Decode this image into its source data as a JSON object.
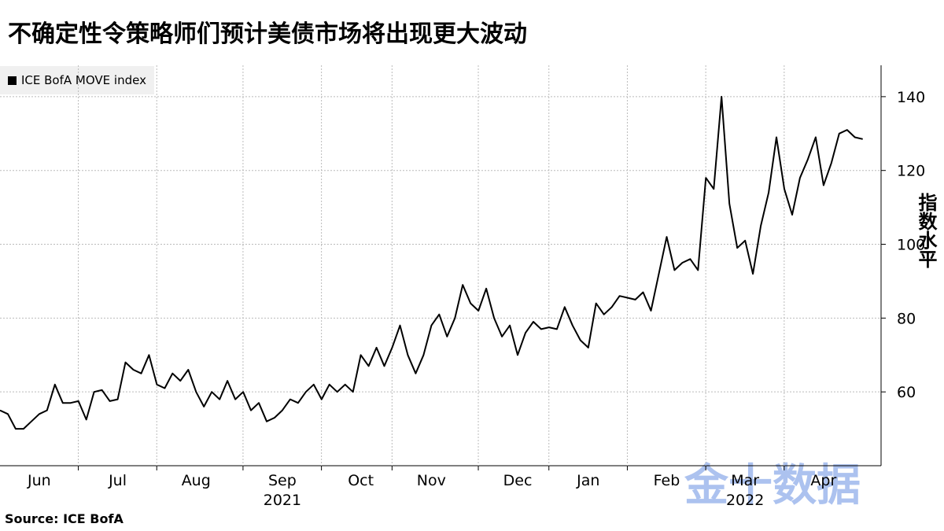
{
  "chart_data": {
    "type": "line",
    "title": "不确定性令策略师们预计美债市场将出现更大波动",
    "y_label": "指数水平",
    "source": "Source: ICE BofA",
    "watermark": "金十数据",
    "categories": [
      null,
      null,
      null,
      null,
      null,
      "Jun",
      null,
      null,
      null,
      null,
      null,
      null,
      null,
      null,
      null,
      "Jul",
      null,
      null,
      null,
      null,
      null,
      null,
      null,
      null,
      null,
      "Aug",
      null,
      null,
      null,
      null,
      null,
      null,
      null,
      null,
      null,
      null,
      "Sep",
      null,
      null,
      null,
      null,
      null,
      null,
      null,
      null,
      null,
      "Oct",
      null,
      null,
      null,
      null,
      null,
      null,
      null,
      null,
      "Nov",
      null,
      null,
      null,
      null,
      null,
      null,
      null,
      null,
      null,
      null,
      "Dec",
      null,
      null,
      null,
      null,
      null,
      null,
      null,
      null,
      "Jan",
      null,
      null,
      null,
      null,
      null,
      null,
      null,
      null,
      null,
      "Feb",
      null,
      null,
      null,
      null,
      null,
      null,
      null,
      null,
      null,
      "Mar",
      null,
      null,
      null,
      null,
      null,
      null,
      null,
      null,
      null,
      "Apr",
      null,
      null,
      null,
      null,
      null
    ],
    "year_categories": [
      null,
      null,
      null,
      null,
      null,
      null,
      null,
      null,
      null,
      null,
      null,
      null,
      null,
      null,
      null,
      null,
      null,
      null,
      null,
      null,
      null,
      null,
      null,
      null,
      null,
      null,
      null,
      null,
      null,
      null,
      null,
      null,
      null,
      null,
      null,
      null,
      "2021",
      null,
      null,
      null,
      null,
      null,
      null,
      null,
      null,
      null,
      null,
      null,
      null,
      null,
      null,
      null,
      null,
      null,
      null,
      null,
      null,
      null,
      null,
      null,
      null,
      null,
      null,
      null,
      null,
      null,
      null,
      null,
      null,
      null,
      null,
      null,
      null,
      null,
      null,
      null,
      null,
      null,
      null,
      null,
      null,
      null,
      null,
      null,
      null,
      null,
      null,
      null,
      null,
      null,
      null,
      null,
      null,
      null,
      null,
      "2022",
      null,
      null,
      null,
      null,
      null,
      null,
      null,
      null,
      null,
      null,
      null,
      null,
      null,
      null,
      null
    ],
    "series": [
      {
        "name": "ICE BofA MOVE index",
        "color": "#000000",
        "values": [
          55,
          54,
          50,
          50,
          52,
          54,
          55,
          62,
          57,
          57,
          57.5,
          52.5,
          60,
          60.5,
          57.5,
          58,
          68,
          66,
          65,
          70,
          62,
          61,
          65,
          63,
          66,
          60,
          56,
          60,
          58,
          63,
          58,
          60,
          55,
          57,
          52,
          53,
          55,
          58,
          57,
          60,
          62,
          58,
          62,
          60,
          62,
          60,
          70,
          67,
          72,
          67,
          72,
          78,
          70,
          65,
          70,
          78,
          81,
          75,
          80,
          89,
          84,
          82,
          88,
          80,
          75,
          78,
          70,
          76,
          79,
          77,
          77.5,
          77,
          83,
          78,
          74,
          72,
          84,
          81,
          83,
          86,
          85.5,
          85,
          87,
          82,
          92,
          102,
          93,
          95,
          96,
          93,
          118,
          115,
          140,
          111,
          99,
          101,
          92,
          105,
          114,
          129,
          115,
          108,
          118,
          123,
          129,
          116,
          122,
          130,
          131,
          129,
          128.5
        ]
      }
    ],
    "ylim": [
      40,
      148.5
    ],
    "yticks": [
      60,
      80,
      100,
      120,
      140
    ],
    "grid": true,
    "legend": "top-left"
  }
}
